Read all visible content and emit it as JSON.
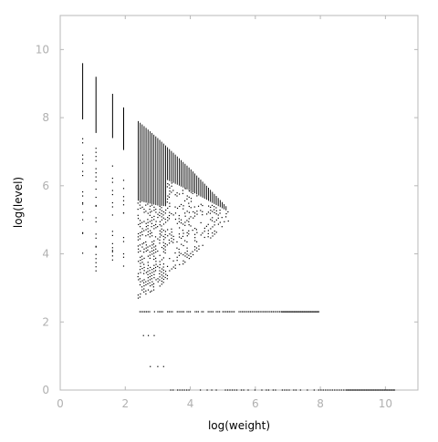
{
  "chart_data": {
    "type": "scatter",
    "title": "",
    "xlabel": "log(weight)",
    "ylabel": "log(level)",
    "xlim": [
      0,
      11
    ],
    "ylim": [
      0,
      11
    ],
    "x_ticks": [
      0,
      2,
      4,
      6,
      8,
      10
    ],
    "y_ticks": [
      0,
      2,
      4,
      6,
      8,
      10
    ],
    "x_tick_labels": [
      "0",
      "2",
      "4",
      "6",
      "8",
      "10"
    ],
    "y_tick_labels": [
      "0",
      "2",
      "4",
      "6",
      "8",
      "10"
    ],
    "grid": false,
    "legend": "none",
    "colors": {
      "points": "#000000",
      "axes": "#b8b8b8",
      "ticks": "#b0b0b0"
    },
    "vertical_columns": [
      {
        "x": 0.69,
        "ymin": 3.9,
        "ymax": 9.6
      },
      {
        "x": 1.1,
        "ymin": 3.5,
        "ymax": 9.2
      },
      {
        "x": 1.61,
        "ymin": 3.7,
        "ymax": 8.7
      },
      {
        "x": 1.95,
        "ymin": 3.4,
        "ymax": 8.3
      }
    ],
    "triangle_region": {
      "x_start": 2.4,
      "x_end": 5.2,
      "x_step": 0.06,
      "upper": [
        [
          2.4,
          7.9
        ],
        [
          3.0,
          7.4
        ],
        [
          4.0,
          6.5
        ],
        [
          5.2,
          5.3
        ]
      ],
      "lower": [
        [
          2.4,
          2.7
        ],
        [
          3.0,
          3.0
        ],
        [
          4.0,
          3.9
        ],
        [
          5.2,
          5.0
        ]
      ]
    },
    "horizontal_band": {
      "y": 2.3,
      "xmin": 2.4,
      "xmax": 7.95
    },
    "floor_band": {
      "y": 0.0,
      "xmin": 3.4,
      "xmax": 10.3
    },
    "sparse_points": [
      [
        2.56,
        1.6
      ],
      [
        2.71,
        1.6
      ],
      [
        2.89,
        1.6
      ],
      [
        2.77,
        0.69
      ],
      [
        3.0,
        0.69
      ],
      [
        3.18,
        0.69
      ],
      [
        0.69,
        4.6
      ],
      [
        0.69,
        5.0
      ],
      [
        0.69,
        5.5
      ],
      [
        1.1,
        4.2
      ],
      [
        1.1,
        5.4
      ],
      [
        1.61,
        4.1
      ],
      [
        1.95,
        3.9
      ],
      [
        1.95,
        5.2
      ]
    ]
  }
}
